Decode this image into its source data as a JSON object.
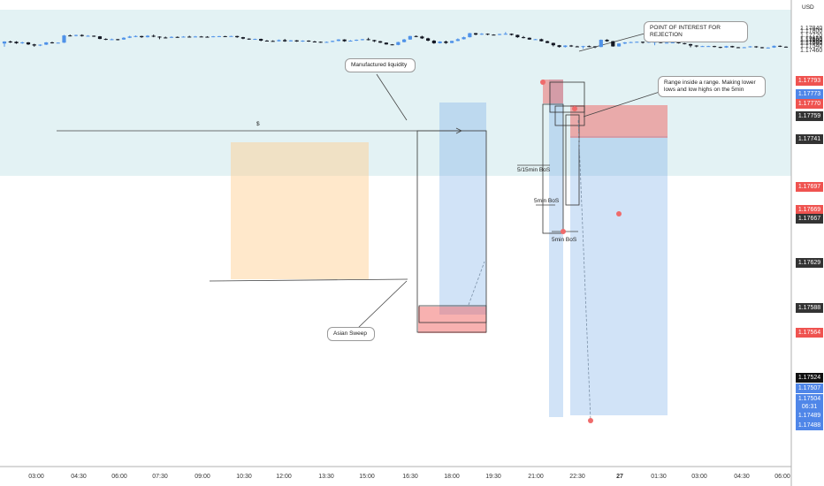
{
  "currency_label": "USD",
  "chart_data": {
    "type": "candlestick",
    "currency": "USD",
    "ylim": [
      1.1745,
      1.179
    ],
    "y_ticks": [
      1.1784,
      1.178,
      1.1772,
      1.1766,
      1.1764,
      1.1762,
      1.176,
      1.1758,
      1.1754,
      1.1746
    ],
    "x_ticks": [
      "03:00",
      "04:30",
      "06:00",
      "07:30",
      "09:00",
      "10:30",
      "12:00",
      "13:30",
      "15:00",
      "16:30",
      "18:00",
      "19:30",
      "21:00",
      "22:30",
      "27",
      "01:30",
      "03:00",
      "04:30",
      "06:00"
    ],
    "price_tags": [
      {
        "value": "1.17793",
        "color": "#ef5350"
      },
      {
        "value": "1.17773",
        "color": "#4f86e8"
      },
      {
        "value": "1.17770",
        "color": "#ef5350"
      },
      {
        "value": "1.17759",
        "color": "#333333"
      },
      {
        "value": "1.17741",
        "color": "#333333"
      },
      {
        "value": "1.17697",
        "color": "#ef5350"
      },
      {
        "value": "1.17669",
        "color": "#ef5350"
      },
      {
        "value": "1.17667",
        "color": "#333333"
      },
      {
        "value": "1.17629",
        "color": "#333333"
      },
      {
        "value": "1.17588",
        "color": "#333333"
      },
      {
        "value": "1.17564",
        "color": "#ef5350"
      },
      {
        "value": "1.17524",
        "color": "#111111"
      },
      {
        "value": "1.17507",
        "color": "#4f86e8"
      },
      {
        "value": "1.17504",
        "color": "#4f86e8"
      },
      {
        "value": "06:31",
        "color": "#4f86e8"
      },
      {
        "value": "1.17489",
        "color": "#4f86e8"
      },
      {
        "value": "1.17488",
        "color": "#4f86e8"
      }
    ],
    "annotations": {
      "poi": "POINT OF INTEREST FOR REJECTION",
      "manufactured": "Manufactured liquidity",
      "range": "Range inside a range. Making lower lows and low highs on the 5min",
      "asian": "Asian Sweep",
      "dollar": "$",
      "bos1": "5/15min BoS",
      "bos2": "5min BoS",
      "bos3": "5min BoS"
    },
    "colors": {
      "up": "#4f92e8",
      "down": "#131722",
      "poi_zone": "#e3f2f4"
    },
    "candles": [
      [
        1.1759,
        1.17625,
        1.17535,
        1.17628
      ],
      [
        1.17625,
        1.1762,
        1.176,
        1.1764
      ],
      [
        1.1762,
        1.17595,
        1.17585,
        1.1763
      ],
      [
        1.17595,
        1.1761,
        1.17585,
        1.1762
      ],
      [
        1.1761,
        1.17575,
        1.17565,
        1.17615
      ],
      [
        1.17575,
        1.17555,
        1.17535,
        1.17585
      ],
      [
        1.17555,
        1.1757,
        1.17545,
        1.17575
      ],
      [
        1.1757,
        1.1761,
        1.17565,
        1.17615
      ],
      [
        1.1761,
        1.176,
        1.1759,
        1.1762
      ],
      [
        1.176,
        1.17605,
        1.17595,
        1.1761
      ],
      [
        1.17605,
        1.1773,
        1.176,
        1.1774
      ],
      [
        1.1773,
        1.17725,
        1.17715,
        1.17745
      ],
      [
        1.17725,
        1.17738,
        1.17715,
        1.17745
      ],
      [
        1.17738,
        1.1772,
        1.1771,
        1.1775
      ],
      [
        1.1772,
        1.17725,
        1.1771,
        1.17735
      ],
      [
        1.17725,
        1.17715,
        1.17705,
        1.1773
      ],
      [
        1.17715,
        1.1767,
        1.17665,
        1.1772
      ],
      [
        1.1767,
        1.1766,
        1.1765,
        1.1768
      ],
      [
        1.1766,
        1.17665,
        1.1765,
        1.17675
      ],
      [
        1.17665,
        1.1766,
        1.17645,
        1.1767
      ],
      [
        1.1766,
        1.1769,
        1.17655,
        1.177
      ],
      [
        1.1769,
        1.17712,
        1.17685,
        1.17725
      ],
      [
        1.17712,
        1.1772,
        1.177,
        1.1773
      ],
      [
        1.1772,
        1.177,
        1.1769,
        1.17725
      ],
      [
        1.177,
        1.17725,
        1.17695,
        1.17735
      ],
      [
        1.17725,
        1.1771,
        1.177,
        1.17745
      ],
      [
        1.1771,
        1.17695,
        1.17665,
        1.17715
      ],
      [
        1.17695,
        1.1769,
        1.1768,
        1.1771
      ],
      [
        1.1769,
        1.17705,
        1.17685,
        1.17715
      ],
      [
        1.17705,
        1.177,
        1.1769,
        1.17712
      ],
      [
        1.177,
        1.1771,
        1.17695,
        1.17718
      ],
      [
        1.1771,
        1.17705,
        1.17695,
        1.17725
      ],
      [
        1.17705,
        1.17712,
        1.177,
        1.17722
      ],
      [
        1.17712,
        1.17708,
        1.177,
        1.1772
      ],
      [
        1.17708,
        1.17705,
        1.17695,
        1.17718
      ],
      [
        1.17705,
        1.17715,
        1.177,
        1.1772
      ],
      [
        1.17715,
        1.17718,
        1.17705,
        1.17722
      ],
      [
        1.17718,
        1.17712,
        1.17705,
        1.17722
      ],
      [
        1.17712,
        1.1772,
        1.17708,
        1.17725
      ],
      [
        1.1772,
        1.177,
        1.1769,
        1.17725
      ],
      [
        1.177,
        1.17675,
        1.17665,
        1.17705
      ],
      [
        1.17675,
        1.17665,
        1.17655,
        1.1768
      ],
      [
        1.17665,
        1.1767,
        1.17655,
        1.17675
      ],
      [
        1.1767,
        1.1764,
        1.1763,
        1.17675
      ],
      [
        1.1764,
        1.17635,
        1.17625,
        1.1765
      ],
      [
        1.17635,
        1.1763,
        1.17625,
        1.17645
      ],
      [
        1.1763,
        1.1765,
        1.17625,
        1.1766
      ],
      [
        1.1765,
        1.17628,
        1.1762,
        1.1767
      ],
      [
        1.17628,
        1.17645,
        1.17625,
        1.1765
      ],
      [
        1.17645,
        1.17625,
        1.1762,
        1.1765
      ],
      [
        1.17625,
        1.1764,
        1.1762,
        1.17645
      ],
      [
        1.1764,
        1.17625,
        1.1762,
        1.17645
      ],
      [
        1.17625,
        1.1762,
        1.17615,
        1.17635
      ],
      [
        1.1762,
        1.17615,
        1.17605,
        1.17625
      ],
      [
        1.17615,
        1.17618,
        1.1761,
        1.17625
      ],
      [
        1.17618,
        1.17635,
        1.17615,
        1.1764
      ],
      [
        1.17635,
        1.1766,
        1.1763,
        1.17665
      ],
      [
        1.1766,
        1.1763,
        1.1762,
        1.17665
      ],
      [
        1.1763,
        1.1764,
        1.17625,
        1.1765
      ],
      [
        1.1764,
        1.17655,
        1.17635,
        1.1766
      ],
      [
        1.17655,
        1.17665,
        1.17645,
        1.1767
      ],
      [
        1.17665,
        1.1765,
        1.17645,
        1.1769
      ],
      [
        1.1765,
        1.1763,
        1.17615,
        1.17655
      ],
      [
        1.1763,
        1.17605,
        1.176,
        1.17635
      ],
      [
        1.17605,
        1.17575,
        1.1757,
        1.1761
      ],
      [
        1.17575,
        1.17565,
        1.1756,
        1.1758
      ],
      [
        1.17565,
        1.17615,
        1.1756,
        1.1762
      ],
      [
        1.17615,
        1.1766,
        1.1761,
        1.1767
      ],
      [
        1.1766,
        1.1772,
        1.17655,
        1.17725
      ],
      [
        1.1772,
        1.17712,
        1.177,
        1.1773
      ],
      [
        1.17712,
        1.1768,
        1.1767,
        1.17725
      ],
      [
        1.1768,
        1.1764,
        1.1763,
        1.1769
      ],
      [
        1.1764,
        1.17595,
        1.17585,
        1.1765
      ],
      [
        1.17595,
        1.17625,
        1.1759,
        1.1763
      ],
      [
        1.17625,
        1.176,
        1.17585,
        1.1764
      ],
      [
        1.176,
        1.17635,
        1.17595,
        1.1764
      ],
      [
        1.17635,
        1.17665,
        1.1763,
        1.1768
      ],
      [
        1.17665,
        1.177,
        1.1766,
        1.1771
      ],
      [
        1.177,
        1.1777,
        1.17695,
        1.17775
      ],
      [
        1.1777,
        1.17745,
        1.17735,
        1.17775
      ],
      [
        1.17745,
        1.1776,
        1.1774,
        1.1777
      ],
      [
        1.1776,
        1.17745,
        1.17735,
        1.17765
      ],
      [
        1.17745,
        1.1774,
        1.17735,
        1.1775
      ],
      [
        1.1774,
        1.17755,
        1.17735,
        1.1776
      ],
      [
        1.17755,
        1.1776,
        1.17745,
        1.1779
      ],
      [
        1.1776,
        1.1774,
        1.1773,
        1.17765
      ],
      [
        1.1774,
        1.177,
        1.1769,
        1.17745
      ],
      [
        1.177,
        1.1769,
        1.1768,
        1.1772
      ],
      [
        1.1769,
        1.1766,
        1.17655,
        1.17695
      ],
      [
        1.1766,
        1.17665,
        1.17655,
        1.1767
      ],
      [
        1.17665,
        1.1763,
        1.17625,
        1.17675
      ],
      [
        1.1763,
        1.176,
        1.17595,
        1.1764
      ],
      [
        1.176,
        1.1756,
        1.1754,
        1.17605
      ],
      [
        1.1756,
        1.1753,
        1.1752,
        1.17565
      ],
      [
        1.1753,
        1.17555,
        1.1752,
        1.1756
      ],
      [
        1.17555,
        1.1754,
        1.1753,
        1.17565
      ],
      [
        1.1754,
        1.1753,
        1.17525,
        1.1755
      ],
      [
        1.1753,
        1.17545,
        1.175,
        1.1755
      ],
      [
        1.17545,
        1.1754,
        1.1753,
        1.17555
      ],
      [
        1.1754,
        1.1753,
        1.1751,
        1.17545
      ],
      [
        1.1753,
        1.17655,
        1.17525,
        1.1766
      ],
      [
        1.17655,
        1.1763,
        1.1762,
        1.17665
      ],
      [
        1.1763,
        1.1754,
        1.17535,
        1.17635
      ],
      [
        1.1754,
        1.1759,
        1.17535,
        1.17595
      ],
      [
        1.1759,
        1.1761,
        1.1758,
        1.17615
      ],
      [
        1.1761,
        1.17615,
        1.176,
        1.1762
      ],
      [
        1.17615,
        1.1762,
        1.1761,
        1.17625
      ],
      [
        1.1762,
        1.1761,
        1.1759,
        1.17625
      ],
      [
        1.1761,
        1.1762,
        1.176,
        1.17625
      ],
      [
        1.1762,
        1.1762,
        1.1756,
        1.17625
      ],
      [
        1.1762,
        1.176,
        1.17595,
        1.17625
      ],
      [
        1.176,
        1.17605,
        1.17595,
        1.1761
      ],
      [
        1.17605,
        1.1761,
        1.176,
        1.17615
      ],
      [
        1.1761,
        1.17595,
        1.1759,
        1.17615
      ],
      [
        1.17595,
        1.1758,
        1.17575,
        1.176
      ],
      [
        1.1758,
        1.17555,
        1.17525,
        1.17585
      ],
      [
        1.17555,
        1.1754,
        1.17525,
        1.1756
      ],
      [
        1.1754,
        1.17545,
        1.17535,
        1.1755
      ],
      [
        1.17545,
        1.17545,
        1.1754,
        1.1755
      ],
      [
        1.17545,
        1.1753,
        1.17525,
        1.1755
      ],
      [
        1.1753,
        1.1752,
        1.1751,
        1.17535
      ],
      [
        1.1752,
        1.17545,
        1.17515,
        1.1755
      ],
      [
        1.17545,
        1.17525,
        1.1752,
        1.1755
      ],
      [
        1.17525,
        1.17515,
        1.1751,
        1.1753
      ],
      [
        1.17515,
        1.17525,
        1.1751,
        1.1753
      ],
      [
        1.17525,
        1.1754,
        1.1752,
        1.17545
      ],
      [
        1.1754,
        1.17525,
        1.17515,
        1.17545
      ],
      [
        1.17525,
        1.1751,
        1.17505,
        1.1753
      ],
      [
        1.1751,
        1.1752,
        1.17505,
        1.17525
      ],
      [
        1.1752,
        1.1755,
        1.17515,
        1.17555
      ],
      [
        1.1755,
        1.17535,
        1.1753,
        1.17555
      ],
      [
        1.17535,
        1.17524,
        1.1752,
        1.1754
      ]
    ]
  }
}
